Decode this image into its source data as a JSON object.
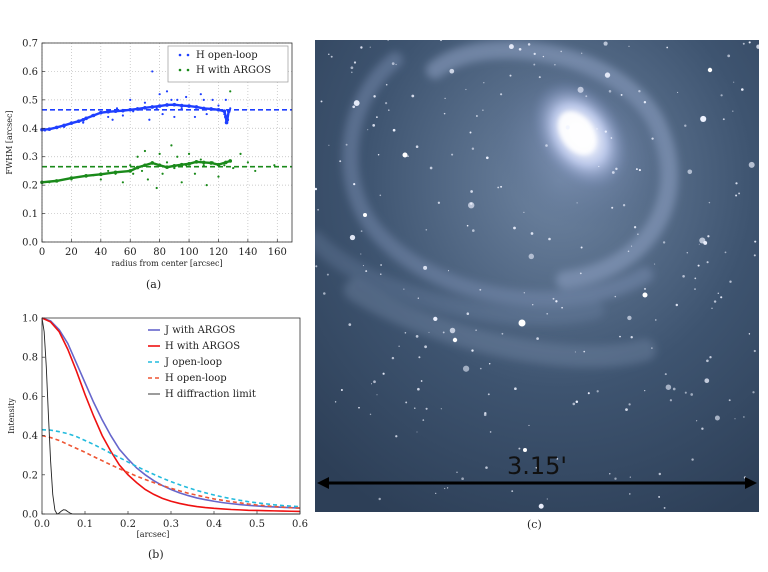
{
  "captions": {
    "a": "(a)",
    "b": "(b)",
    "c": "(c)"
  },
  "image_c": {
    "scale_label": "3.15'"
  },
  "chart_data": [
    {
      "type": "scatter",
      "xlabel": "radius from center [arcsec]",
      "ylabel": "FWHM [arcsec]",
      "xlim": [
        0,
        170
      ],
      "ylim": [
        0.0,
        0.7
      ],
      "xticks": [
        "0",
        "20",
        "40",
        "60",
        "80",
        "100",
        "120",
        "140",
        "160"
      ],
      "yticks": [
        "0.0",
        "0.1",
        "0.2",
        "0.3",
        "0.4",
        "0.5",
        "0.6",
        "0.7"
      ],
      "grid": true,
      "legend_position": "top-right",
      "series": [
        {
          "name": "H open-loop",
          "color": "#1f3fff",
          "x": [
            2,
            15,
            28,
            34,
            40,
            45,
            48,
            51,
            55,
            60,
            62,
            65,
            70,
            73,
            75,
            78,
            80,
            82,
            85,
            88,
            90,
            92,
            95,
            98,
            100,
            104,
            108,
            110,
            112,
            116,
            120,
            124,
            125,
            128
          ],
          "y": [
            0.392,
            0.405,
            0.42,
            0.445,
            0.455,
            0.44,
            0.43,
            0.47,
            0.445,
            0.5,
            0.46,
            0.47,
            0.49,
            0.43,
            0.6,
            0.47,
            0.52,
            0.45,
            0.53,
            0.5,
            0.44,
            0.5,
            0.47,
            0.51,
            0.48,
            0.44,
            0.52,
            0.5,
            0.45,
            0.5,
            0.48,
            0.45,
            0.5,
            0.47
          ],
          "trend_x": [
            0,
            5,
            10,
            15,
            20,
            25,
            28,
            30,
            35,
            40,
            45,
            50,
            55,
            60,
            65,
            70,
            75,
            80,
            85,
            90,
            95,
            100,
            105,
            110,
            115,
            120,
            124,
            125,
            125.5,
            126,
            127
          ],
          "trend_y": [
            0.395,
            0.397,
            0.403,
            0.41,
            0.418,
            0.425,
            0.43,
            0.435,
            0.445,
            0.455,
            0.458,
            0.46,
            0.462,
            0.465,
            0.468,
            0.472,
            0.475,
            0.478,
            0.482,
            0.483,
            0.48,
            0.478,
            0.475,
            0.47,
            0.468,
            0.465,
            0.46,
            0.44,
            0.42,
            0.43,
            0.46
          ],
          "reference_line": 0.465
        },
        {
          "name": "H with ARGOS",
          "color": "#1a8a1a",
          "x": [
            5,
            20,
            30,
            35,
            40,
            45,
            50,
            55,
            60,
            62,
            65,
            68,
            70,
            72,
            75,
            78,
            80,
            82,
            85,
            88,
            90,
            92,
            95,
            98,
            100,
            104,
            108,
            110,
            112,
            116,
            120,
            124,
            128,
            130,
            135,
            140,
            145,
            158
          ],
          "y": [
            0.21,
            0.22,
            0.23,
            0.235,
            0.22,
            0.25,
            0.24,
            0.21,
            0.27,
            0.24,
            0.3,
            0.25,
            0.32,
            0.22,
            0.28,
            0.19,
            0.31,
            0.24,
            0.28,
            0.34,
            0.26,
            0.3,
            0.21,
            0.27,
            0.31,
            0.24,
            0.29,
            0.27,
            0.2,
            0.28,
            0.23,
            0.27,
            0.53,
            0.26,
            0.31,
            0.28,
            0.25,
            0.27
          ],
          "trend_x": [
            0,
            10,
            20,
            30,
            40,
            50,
            60,
            65,
            70,
            75,
            80,
            85,
            90,
            95,
            100,
            105,
            110,
            115,
            120,
            125,
            128
          ],
          "trend_y": [
            0.21,
            0.215,
            0.225,
            0.233,
            0.238,
            0.245,
            0.25,
            0.262,
            0.27,
            0.278,
            0.27,
            0.263,
            0.268,
            0.272,
            0.275,
            0.282,
            0.28,
            0.278,
            0.272,
            0.28,
            0.285
          ],
          "reference_line": 0.265
        }
      ]
    },
    {
      "type": "line",
      "xlabel": "[arcsec]",
      "ylabel": "Intensity",
      "xlim": [
        0.0,
        0.6
      ],
      "ylim": [
        0.0,
        1.0
      ],
      "xticks": [
        "0.0",
        "0.1",
        "0.2",
        "0.3",
        "0.4",
        "0.5",
        "0.6"
      ],
      "yticks": [
        "0.0",
        "0.2",
        "0.4",
        "0.6",
        "0.8",
        "1.0"
      ],
      "grid": false,
      "legend_position": "top-right",
      "x": [
        0.0,
        0.02,
        0.04,
        0.06,
        0.08,
        0.1,
        0.12,
        0.14,
        0.16,
        0.18,
        0.2,
        0.22,
        0.24,
        0.26,
        0.28,
        0.3,
        0.32,
        0.34,
        0.36,
        0.38,
        0.4,
        0.42,
        0.44,
        0.46,
        0.48,
        0.5,
        0.52,
        0.54,
        0.56,
        0.58,
        0.6
      ],
      "series": [
        {
          "name": "J with ARGOS",
          "color": "#6666cc",
          "style": "solid",
          "values": [
            1.0,
            0.985,
            0.94,
            0.87,
            0.77,
            0.67,
            0.57,
            0.48,
            0.4,
            0.33,
            0.28,
            0.235,
            0.2,
            0.17,
            0.145,
            0.125,
            0.108,
            0.094,
            0.082,
            0.073,
            0.065,
            0.058,
            0.053,
            0.048,
            0.044,
            0.041,
            0.038,
            0.036,
            0.034,
            0.032,
            0.03
          ]
        },
        {
          "name": "H with ARGOS",
          "color": "#ee1111",
          "style": "solid",
          "values": [
            1.0,
            0.98,
            0.93,
            0.84,
            0.73,
            0.61,
            0.5,
            0.4,
            0.32,
            0.25,
            0.2,
            0.16,
            0.125,
            0.1,
            0.08,
            0.065,
            0.054,
            0.045,
            0.038,
            0.033,
            0.029,
            0.026,
            0.023,
            0.021,
            0.019,
            0.018,
            0.017,
            0.016,
            0.015,
            0.014,
            0.013
          ]
        },
        {
          "name": "J open-loop",
          "color": "#22bbdd",
          "style": "dashed",
          "values": [
            0.43,
            0.428,
            0.42,
            0.41,
            0.395,
            0.375,
            0.355,
            0.333,
            0.31,
            0.288,
            0.265,
            0.243,
            0.222,
            0.202,
            0.183,
            0.165,
            0.149,
            0.134,
            0.12,
            0.108,
            0.097,
            0.087,
            0.078,
            0.07,
            0.063,
            0.057,
            0.052,
            0.047,
            0.043,
            0.04,
            0.037
          ]
        },
        {
          "name": "H open-loop",
          "color": "#ee5533",
          "style": "dashed",
          "values": [
            0.4,
            0.39,
            0.375,
            0.355,
            0.335,
            0.315,
            0.293,
            0.272,
            0.251,
            0.231,
            0.212,
            0.193,
            0.176,
            0.16,
            0.145,
            0.131,
            0.118,
            0.106,
            0.096,
            0.086,
            0.077,
            0.07,
            0.063,
            0.057,
            0.051,
            0.046,
            0.042,
            0.038,
            0.035,
            0.032,
            0.03
          ]
        },
        {
          "name": "H diffraction limit",
          "color": "#222222",
          "style": "solid",
          "x": [
            0.0,
            0.005,
            0.01,
            0.015,
            0.02,
            0.025,
            0.03,
            0.035,
            0.04,
            0.045,
            0.05,
            0.055,
            0.06,
            0.065,
            0.07,
            0.075,
            0.08,
            0.1,
            0.6
          ],
          "values": [
            1.0,
            0.93,
            0.75,
            0.5,
            0.27,
            0.1,
            0.02,
            0.0,
            0.005,
            0.015,
            0.022,
            0.02,
            0.012,
            0.005,
            0.001,
            0.0,
            0.0,
            0.0,
            0.0
          ]
        }
      ]
    }
  ]
}
